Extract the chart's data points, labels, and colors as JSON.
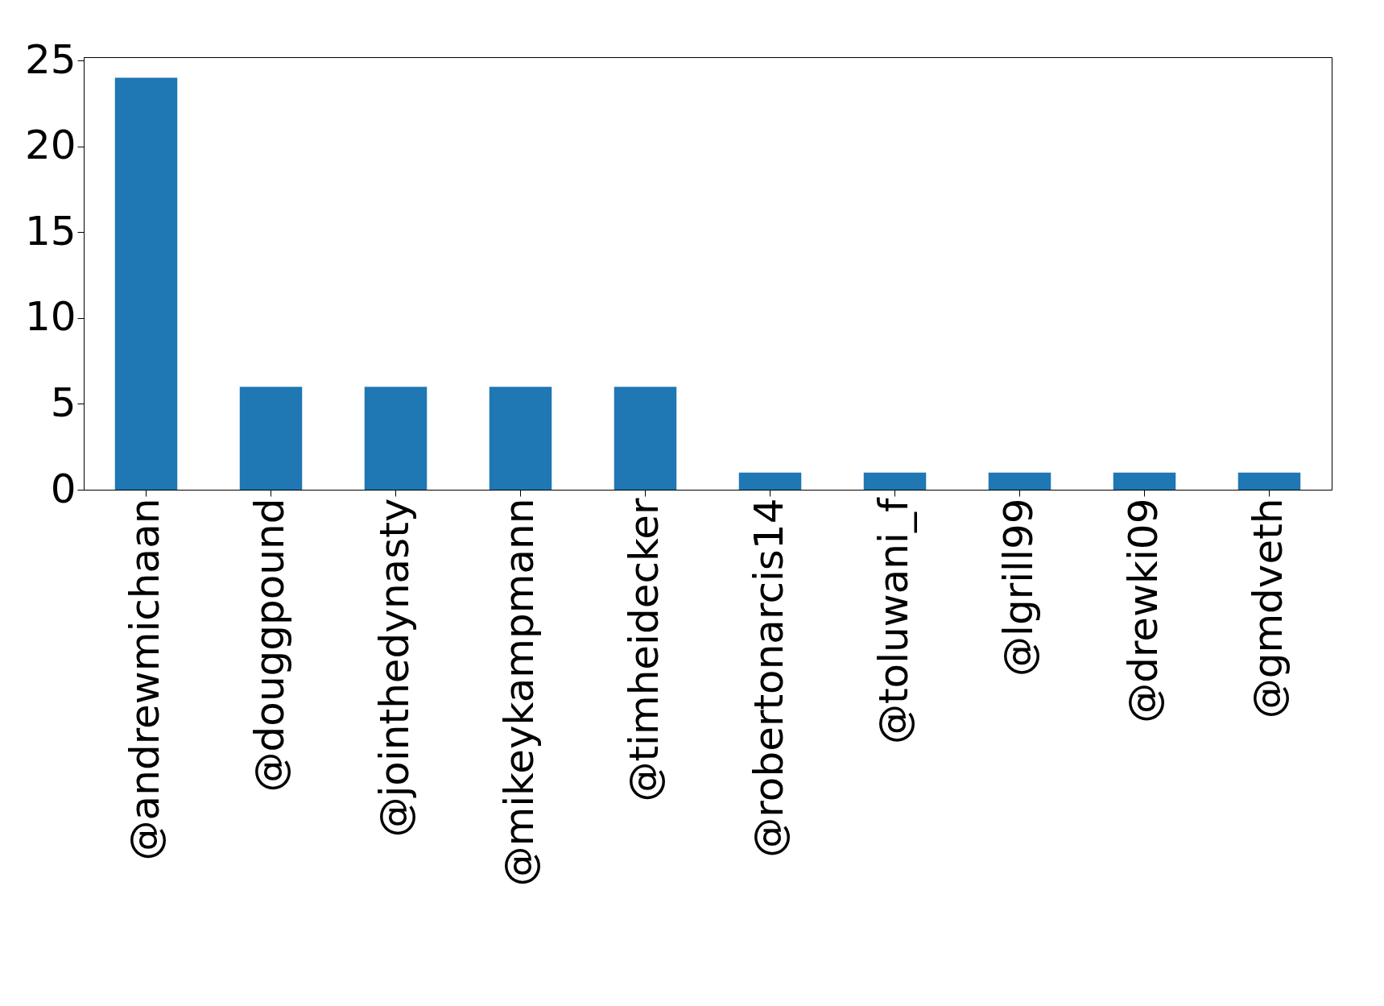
{
  "chart_data": {
    "type": "bar",
    "categories": [
      "@andrewmichaan",
      "@douggpound",
      "@jointhedynasty",
      "@mikeykampmann",
      "@timheidecker",
      "@robertonarcis14",
      "@toluwani_f",
      "@lgrill99",
      "@drewki09",
      "@gmdveth"
    ],
    "values": [
      24,
      6,
      6,
      6,
      6,
      1,
      1,
      1,
      1,
      1
    ],
    "color": "#1f77b4",
    "ylim": [
      0,
      25.2
    ],
    "yticks": [
      0,
      5,
      10,
      15,
      20,
      25
    ],
    "grid": false
  }
}
